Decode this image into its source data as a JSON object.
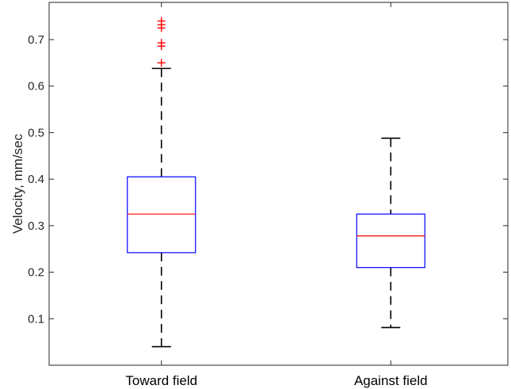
{
  "chart_data": {
    "type": "box",
    "title": "",
    "xlabel": "",
    "ylabel": "Velocity, mm/sec",
    "ylim": [
      0.0,
      0.78
    ],
    "yticks": [
      0.1,
      0.2,
      0.3,
      0.4,
      0.5,
      0.6,
      0.7
    ],
    "ytick_labels": [
      "0.1",
      "0.2",
      "0.3",
      "0.4",
      "0.5",
      "0.6",
      "0.7"
    ],
    "categories": [
      "Toward field",
      "Against field"
    ],
    "boxes": [
      {
        "category": "Toward field",
        "whisker_low": 0.04,
        "q1": 0.242,
        "median": 0.325,
        "q3": 0.405,
        "whisker_high": 0.638,
        "outliers": [
          0.65,
          0.686,
          0.693,
          0.725,
          0.732,
          0.74
        ]
      },
      {
        "category": "Against field",
        "whisker_low": 0.081,
        "q1": 0.21,
        "median": 0.278,
        "q3": 0.325,
        "whisker_high": 0.488,
        "outliers": []
      }
    ],
    "grid": false,
    "colors": {
      "box": "#0000ff",
      "median": "#ff0000",
      "whisker": "#000000",
      "outlier": "#ff0000"
    }
  }
}
